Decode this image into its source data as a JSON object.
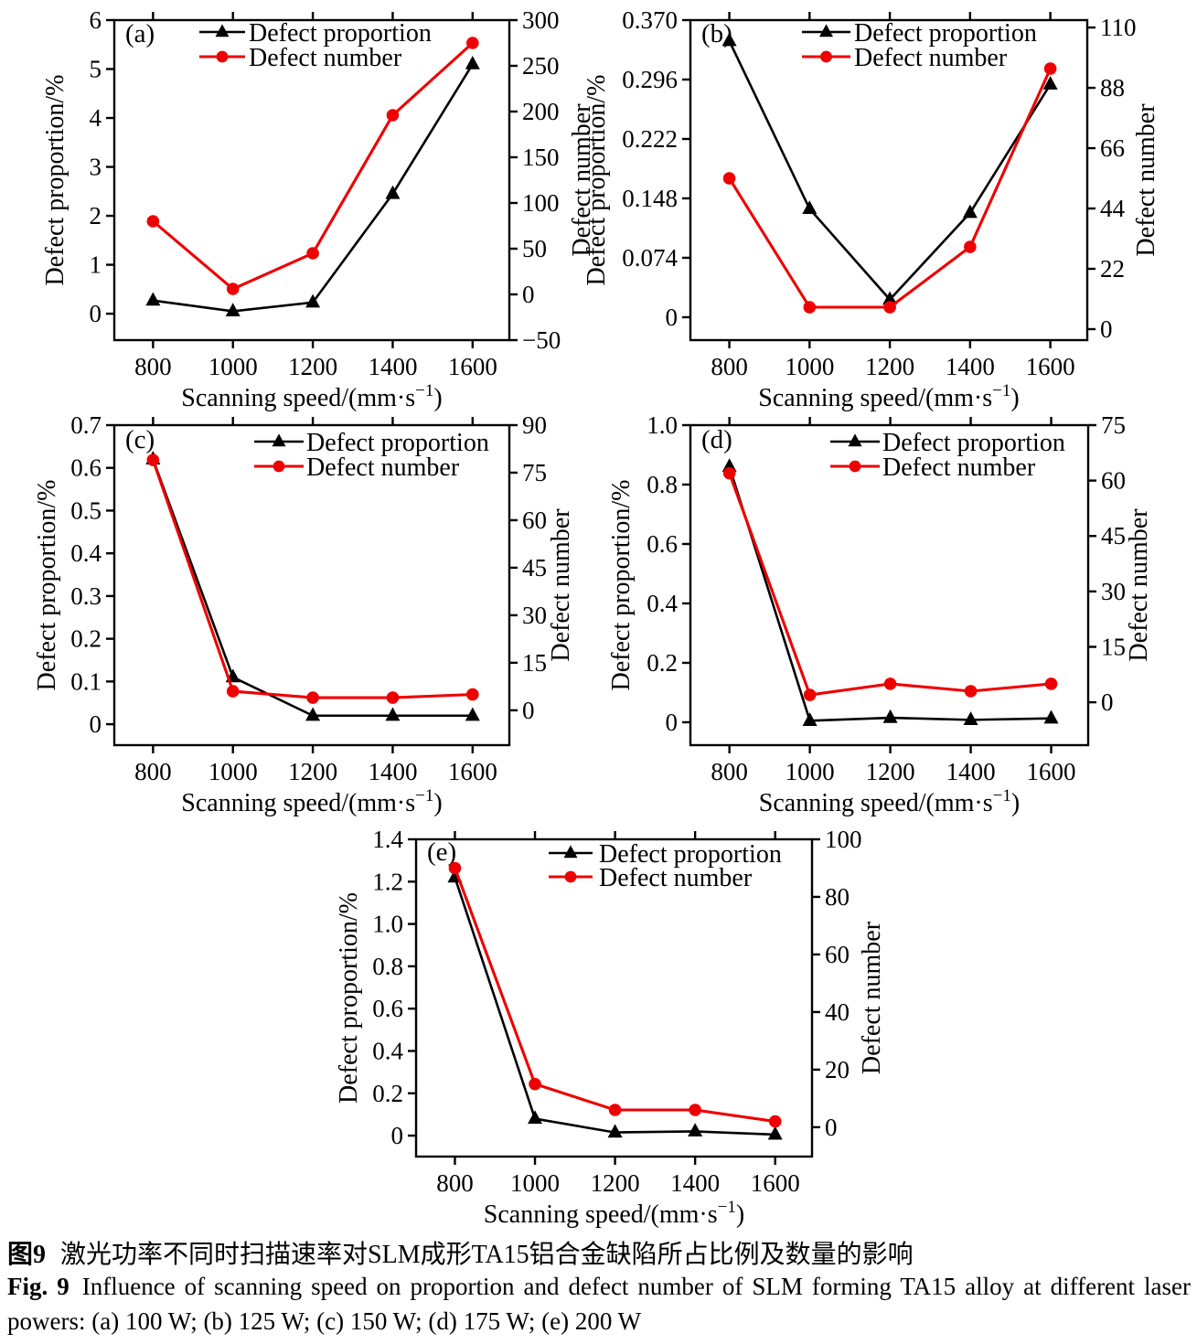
{
  "caption": {
    "zh_label": "图9",
    "zh_text": "激光功率不同时扫描速率对SLM成形TA15铝合金缺陷所占比例及数量的影响",
    "en_label": "Fig. 9",
    "en_line1": "Influence of scanning speed on proportion and defect number of SLM forming TA15 alloy at different laser",
    "en_line2": "powers: (a) 100 W; (b) 125 W; (c) 150 W; (d) 175 W; (e) 200 W"
  },
  "colors": {
    "proportion": "#000000",
    "number": "#ee0000",
    "frame": "#000000"
  },
  "chart_data": [
    {
      "type": "line",
      "id": "a",
      "panel_label": "(a)",
      "laser_power": "100 W",
      "x": [
        800,
        1000,
        1200,
        1400,
        1600
      ],
      "x_tick_labels": [
        "800",
        "1000",
        "1200",
        "1400",
        "1600"
      ],
      "xlabel": "Scanning speed/(mm·s⁻¹)",
      "left_ylabel": "Defect proportion/%",
      "right_ylabel": "Defect number",
      "legend_position": "top-center-inside",
      "grid": false,
      "left_tick_values": [
        0,
        1,
        2,
        3,
        4,
        5,
        6
      ],
      "left_tick_labels": [
        "0",
        "1",
        "2",
        "3",
        "4",
        "5",
        "6"
      ],
      "left_range": [
        -0.54,
        6
      ],
      "right_tick_values": [
        -50,
        0,
        50,
        100,
        150,
        200,
        250,
        300
      ],
      "right_tick_labels": [
        "−50",
        "0",
        "50",
        "100",
        "150",
        "200",
        "250",
        "300"
      ],
      "right_range": [
        -50,
        300
      ],
      "series": [
        {
          "name": "Defect proportion",
          "axis": "left",
          "marker": "triangle",
          "values": [
            0.27,
            0.05,
            0.23,
            2.45,
            5.1
          ]
        },
        {
          "name": "Defect number",
          "axis": "right",
          "marker": "circle",
          "values": [
            80,
            6,
            45,
            196,
            275
          ]
        }
      ]
    },
    {
      "type": "line",
      "id": "b",
      "panel_label": "(b)",
      "laser_power": "125 W",
      "x": [
        800,
        1000,
        1200,
        1400,
        1600
      ],
      "x_tick_labels": [
        "800",
        "1000",
        "1200",
        "1400",
        "1600"
      ],
      "xlabel": "Scanning speed/(mm·s⁻¹)",
      "left_ylabel": "Defect proportion/%",
      "right_ylabel": "Defect number",
      "legend_position": "top-center-inside",
      "grid": false,
      "left_tick_values": [
        0,
        0.074,
        0.148,
        0.222,
        0.296,
        0.37
      ],
      "left_tick_labels": [
        "0",
        "0.074",
        "0.148",
        "0.222",
        "0.296",
        "0.370"
      ],
      "left_range": [
        -0.0285,
        0.37
      ],
      "right_tick_values": [
        0,
        22,
        44,
        66,
        88,
        110
      ],
      "right_tick_labels": [
        "0",
        "22",
        "44",
        "66",
        "88",
        "110"
      ],
      "right_range": [
        -4,
        112.7
      ],
      "series": [
        {
          "name": "Defect proportion",
          "axis": "left",
          "marker": "triangle",
          "values": [
            0.344,
            0.135,
            0.022,
            0.13,
            0.29
          ]
        },
        {
          "name": "Defect number",
          "axis": "right",
          "marker": "circle",
          "values": [
            55,
            8,
            8,
            30,
            95
          ]
        }
      ]
    },
    {
      "type": "line",
      "id": "c",
      "panel_label": "(c)",
      "laser_power": "150 W",
      "x": [
        800,
        1000,
        1200,
        1400,
        1600
      ],
      "x_tick_labels": [
        "800",
        "1000",
        "1200",
        "1400",
        "1600"
      ],
      "xlabel": "Scanning speed/(mm·s⁻¹)",
      "left_ylabel": "Defect proportion/%",
      "right_ylabel": "Defect number",
      "legend_position": "top-center-inside",
      "grid": false,
      "left_tick_values": [
        0,
        0.1,
        0.2,
        0.3,
        0.4,
        0.5,
        0.6,
        0.7
      ],
      "left_tick_labels": [
        "0",
        "0.1",
        "0.2",
        "0.3",
        "0.4",
        "0.5",
        "0.6",
        "0.7"
      ],
      "left_range": [
        -0.049,
        0.7
      ],
      "right_tick_values": [
        0,
        15,
        30,
        45,
        60,
        75,
        90
      ],
      "right_tick_labels": [
        "0",
        "15",
        "30",
        "45",
        "60",
        "75",
        "90"
      ],
      "right_range": [
        -11,
        90
      ],
      "series": [
        {
          "name": "Defect proportion",
          "axis": "left",
          "marker": "triangle",
          "values": [
            0.62,
            0.11,
            0.02,
            0.02,
            0.02
          ]
        },
        {
          "name": "Defect number",
          "axis": "right",
          "marker": "circle",
          "values": [
            79,
            6,
            4,
            4,
            5
          ]
        }
      ]
    },
    {
      "type": "line",
      "id": "d",
      "panel_label": "(d)",
      "laser_power": "175 W",
      "x": [
        800,
        1000,
        1200,
        1400,
        1600
      ],
      "x_tick_labels": [
        "800",
        "1000",
        "1200",
        "1400",
        "1600"
      ],
      "xlabel": "Scanning speed/(mm·s⁻¹)",
      "left_ylabel": "Defect proportion/%",
      "right_ylabel": "Defect number",
      "legend_position": "top-center-inside",
      "grid": false,
      "left_tick_values": [
        0,
        0.2,
        0.4,
        0.6,
        0.8,
        1.0
      ],
      "left_tick_labels": [
        "0",
        "0.2",
        "0.4",
        "0.6",
        "0.8",
        "1.0"
      ],
      "left_range": [
        -0.077,
        1.0
      ],
      "right_tick_values": [
        0,
        15,
        30,
        45,
        60,
        75
      ],
      "right_tick_labels": [
        "0",
        "15",
        "30",
        "45",
        "60",
        "75"
      ],
      "right_range": [
        -11.6,
        75
      ],
      "series": [
        {
          "name": "Defect proportion",
          "axis": "left",
          "marker": "triangle",
          "values": [
            0.86,
            0.005,
            0.015,
            0.008,
            0.013
          ]
        },
        {
          "name": "Defect number",
          "axis": "right",
          "marker": "circle",
          "values": [
            62,
            2,
            5,
            3,
            5
          ]
        }
      ]
    },
    {
      "type": "line",
      "id": "e",
      "panel_label": "(e)",
      "laser_power": "200 W",
      "x": [
        800,
        1000,
        1200,
        1400,
        1600
      ],
      "x_tick_labels": [
        "800",
        "1000",
        "1200",
        "1400",
        "1600"
      ],
      "xlabel": "Scanning speed/(mm·s⁻¹)",
      "left_ylabel": "Defect proportion/%",
      "right_ylabel": "Defect number",
      "legend_position": "top-center-inside",
      "grid": false,
      "left_tick_values": [
        0,
        0.2,
        0.4,
        0.6,
        0.8,
        1.0,
        1.2,
        1.4
      ],
      "left_tick_labels": [
        "0",
        "0.2",
        "0.4",
        "0.6",
        "0.8",
        "1.0",
        "1.2",
        "1.4"
      ],
      "left_range": [
        -0.099,
        1.4
      ],
      "right_tick_values": [
        0,
        20,
        40,
        60,
        80,
        100
      ],
      "right_tick_labels": [
        "0",
        "20",
        "40",
        "60",
        "80",
        "100"
      ],
      "right_range": [
        -10.2,
        100
      ],
      "series": [
        {
          "name": "Defect proportion",
          "axis": "left",
          "marker": "triangle",
          "values": [
            1.22,
            0.08,
            0.015,
            0.02,
            0.005
          ]
        },
        {
          "name": "Defect number",
          "axis": "right",
          "marker": "circle",
          "values": [
            90,
            15,
            6,
            6,
            2
          ]
        }
      ]
    }
  ]
}
